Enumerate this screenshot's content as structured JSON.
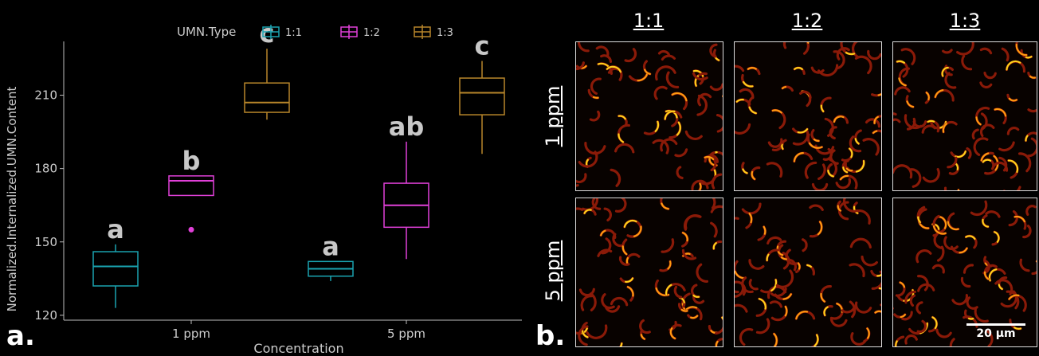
{
  "chart_data": {
    "type": "box",
    "title": "",
    "xlabel": "Concentration",
    "ylabel": "Normalized.Internalized.UMN.Content",
    "ylim": [
      118,
      232
    ],
    "yticks": [
      120,
      150,
      180,
      210
    ],
    "categories": [
      "1 ppm",
      "5 ppm"
    ],
    "legend": {
      "title": "UMN.Type",
      "position": "top"
    },
    "series": [
      {
        "name": "1:1",
        "color": "#1aa3b0",
        "boxes": [
          {
            "min": 123,
            "q1": 132,
            "median": 140,
            "q3": 146,
            "max": 149,
            "outliers": [],
            "letter": "a"
          },
          {
            "min": 134,
            "q1": 136,
            "median": 139,
            "q3": 142,
            "max": 142,
            "outliers": [],
            "letter": "a"
          }
        ]
      },
      {
        "name": "1:2",
        "color": "#e040d8",
        "boxes": [
          {
            "min": 169,
            "q1": 169,
            "median": 175,
            "q3": 177,
            "max": 177,
            "outliers": [
              155
            ],
            "letter": "b"
          },
          {
            "min": 143,
            "q1": 156,
            "median": 165,
            "q3": 174,
            "max": 191,
            "outliers": [],
            "letter": "ab"
          }
        ]
      },
      {
        "name": "1:3",
        "color": "#b8862a",
        "boxes": [
          {
            "min": 200,
            "q1": 203,
            "median": 207,
            "q3": 215,
            "max": 229,
            "outliers": [],
            "letter": "c"
          },
          {
            "min": 186,
            "q1": 202,
            "median": 211,
            "q3": 217,
            "max": 224,
            "outliers": [],
            "letter": "c"
          }
        ]
      }
    ]
  },
  "panel_a_label": "a.",
  "panel_b_label": "b.",
  "micrographs": {
    "columns": [
      "1:1",
      "1:2",
      "1:3"
    ],
    "rows": [
      "1 ppm",
      "5 ppm"
    ],
    "scale_bar": "20 µm"
  }
}
